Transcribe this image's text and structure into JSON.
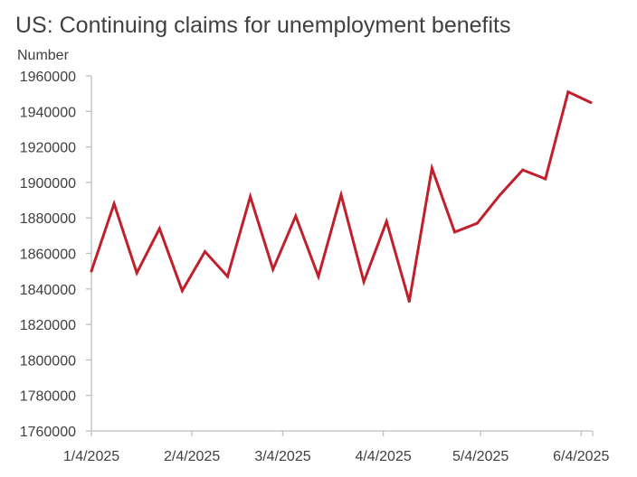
{
  "chart_data": {
    "type": "line",
    "title": "US: Continuing claims for unemployment benefits",
    "ylabel": "Number",
    "xlabel": "",
    "ylim": [
      1760000,
      1960000
    ],
    "yticks": [
      1760000,
      1780000,
      1800000,
      1820000,
      1840000,
      1860000,
      1880000,
      1900000,
      1920000,
      1940000,
      1960000
    ],
    "ytick_labels": [
      "1760000",
      "1780000",
      "1800000",
      "1820000",
      "1840000",
      "1860000",
      "1880000",
      "1900000",
      "1920000",
      "1940000",
      "1960000"
    ],
    "xtick_labels": [
      "1/4/2025",
      "2/4/2025",
      "3/4/2025",
      "4/4/2025",
      "5/4/2025",
      "6/4/2025"
    ],
    "xtick_dates": [
      "2025-01-04",
      "2025-02-04",
      "2025-03-04",
      "2025-04-04",
      "2025-05-04",
      "2025-06-04"
    ],
    "xlim": [
      "2025-01-04",
      "2025-06-07"
    ],
    "grid": false,
    "line_color": "#c0202c",
    "series": [
      {
        "x": [
          "2025-01-04",
          "2025-01-11",
          "2025-01-18",
          "2025-01-25",
          "2025-02-01",
          "2025-02-08",
          "2025-02-15",
          "2025-02-22",
          "2025-03-01",
          "2025-03-08",
          "2025-03-15",
          "2025-03-22",
          "2025-03-29",
          "2025-04-05",
          "2025-04-12",
          "2025-04-19",
          "2025-04-26",
          "2025-05-03",
          "2025-05-10",
          "2025-05-17",
          "2025-05-24",
          "2025-05-31",
          "2025-06-07"
        ],
        "values": [
          1850000,
          1888000,
          1849000,
          1874000,
          1839000,
          1861000,
          1847000,
          1892000,
          1851000,
          1881000,
          1847000,
          1893000,
          1844000,
          1878000,
          1833000,
          1908000,
          1872000,
          1877000,
          1893000,
          1907000,
          1902000,
          1951000,
          1945000
        ]
      }
    ]
  }
}
